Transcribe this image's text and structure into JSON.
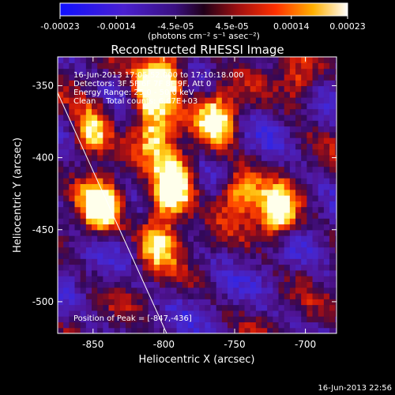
{
  "chart_data": {
    "type": "heatmap",
    "title": "Reconstructed RHESSI Image",
    "xlabel": "Heliocentric X (arcsec)",
    "ylabel": "Heliocentric Y (arcsec)",
    "xlim": [
      -875,
      -678
    ],
    "ylim": [
      -522,
      -330
    ],
    "x_ticks": [
      -850,
      -800,
      -750,
      -700
    ],
    "x_tick_labels": [
      "-850",
      "-800",
      "-750",
      "-700"
    ],
    "y_ticks": [
      -350,
      -400,
      -450,
      -500
    ],
    "y_tick_labels": [
      "-350",
      "-400",
      "-450",
      "-500"
    ],
    "colorbar": {
      "range": [
        -0.00023,
        0.00023
      ],
      "ticks": [
        -0.00023,
        -0.00014,
        -4.5e-05,
        4.5e-05,
        0.00014,
        0.00023
      ],
      "tick_labels": [
        "-0.00023",
        "-0.00014",
        "-4.5e-05",
        "4.5e-05",
        "0.00014",
        "0.00023"
      ],
      "units": "(photons cm⁻² s⁻¹ asec⁻²)",
      "colormap": "blue-purple-red-orange-yellow-white"
    },
    "annotations": {
      "time_range": "16-Jun-2013 17:05:52.000 to 17:10:18.000",
      "detectors": "Detectors: 3F 5F 6F 7F 8F 9F, Att 0",
      "energy": "Energy Range: 25.0 - 50.0 keV",
      "method": "Clean    Total counts: 6.67E+03",
      "peak": "Position of Peak = [-847,-436]"
    },
    "peak_position": [
      -847,
      -436
    ],
    "sources": [
      {
        "x": -847,
        "y": -436,
        "intensity": 1.0
      },
      {
        "x": -853,
        "y": -385,
        "intensity": 0.85
      },
      {
        "x": -812,
        "y": -357,
        "intensity": 0.9
      },
      {
        "x": -800,
        "y": -343,
        "intensity": 0.85
      },
      {
        "x": -764,
        "y": -375,
        "intensity": 0.85
      },
      {
        "x": -722,
        "y": -440,
        "intensity": 0.95
      },
      {
        "x": -799,
        "y": -430,
        "intensity": 0.75
      },
      {
        "x": -792,
        "y": -415,
        "intensity": 0.7
      },
      {
        "x": -806,
        "y": -460,
        "intensity": 0.75
      },
      {
        "x": -749,
        "y": -426,
        "intensity": 0.7
      },
      {
        "x": -808,
        "y": -385,
        "intensity": 0.7
      },
      {
        "x": -706,
        "y": -350,
        "intensity": 0.5
      }
    ],
    "limb_line": [
      [
        -875,
        -355
      ],
      [
        -798,
        -522
      ]
    ],
    "grid": false
  },
  "footer": {
    "timestamp": "16-Jun-2013 22:56"
  }
}
